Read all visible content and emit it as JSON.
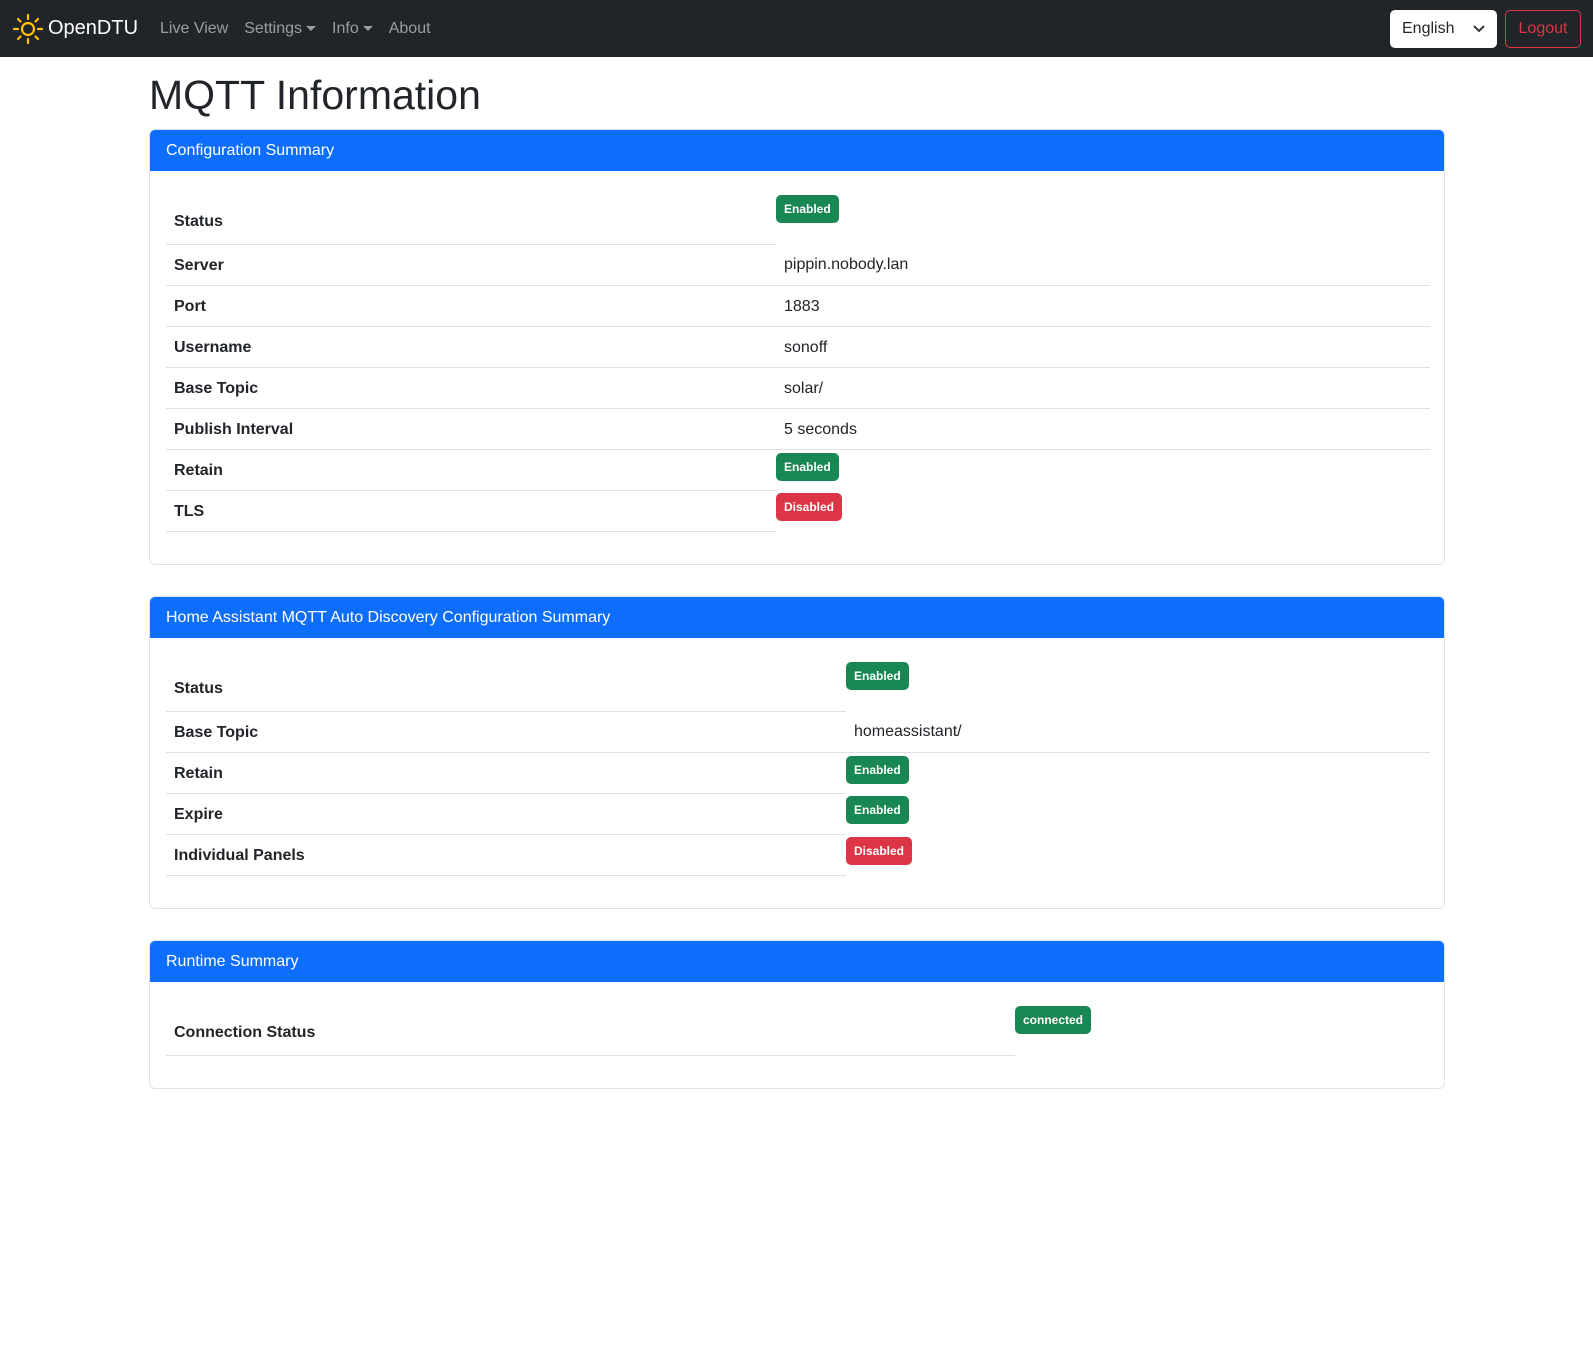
{
  "navbar": {
    "brand": "OpenDTU",
    "links": [
      {
        "label": "Live View",
        "dropdown": false
      },
      {
        "label": "Settings",
        "dropdown": true
      },
      {
        "label": "Info",
        "dropdown": true
      },
      {
        "label": "About",
        "dropdown": false
      }
    ],
    "language": "English",
    "logout": "Logout"
  },
  "page_title": "MQTT Information",
  "config": {
    "title": "Configuration Summary",
    "rows": [
      {
        "label": "Status",
        "badge": "Enabled",
        "color": "#198754"
      },
      {
        "label": "Server",
        "value": "pippin.nobody.lan"
      },
      {
        "label": "Port",
        "value": "1883"
      },
      {
        "label": "Username",
        "value": "sonoff"
      },
      {
        "label": "Base Topic",
        "value": "solar/"
      },
      {
        "label": "Publish Interval",
        "value": "5 seconds"
      },
      {
        "label": "Retain",
        "badge": "Enabled",
        "color": "#198754"
      },
      {
        "label": "TLS",
        "badge": "Disabled",
        "color": "#dc3545"
      }
    ]
  },
  "hass": {
    "title": "Home Assistant MQTT Auto Discovery Configuration Summary",
    "rows": [
      {
        "label": "Status",
        "badge": "Enabled",
        "color": "#198754"
      },
      {
        "label": "Base Topic",
        "value": "homeassistant/"
      },
      {
        "label": "Retain",
        "badge": "Enabled",
        "color": "#198754"
      },
      {
        "label": "Expire",
        "badge": "Enabled",
        "color": "#198754"
      },
      {
        "label": "Individual Panels",
        "badge": "Disabled",
        "color": "#dc3545"
      }
    ]
  },
  "runtime": {
    "title": "Runtime Summary",
    "rows": [
      {
        "label": "Connection Status",
        "badge": "connected",
        "color": "#198754"
      }
    ]
  }
}
